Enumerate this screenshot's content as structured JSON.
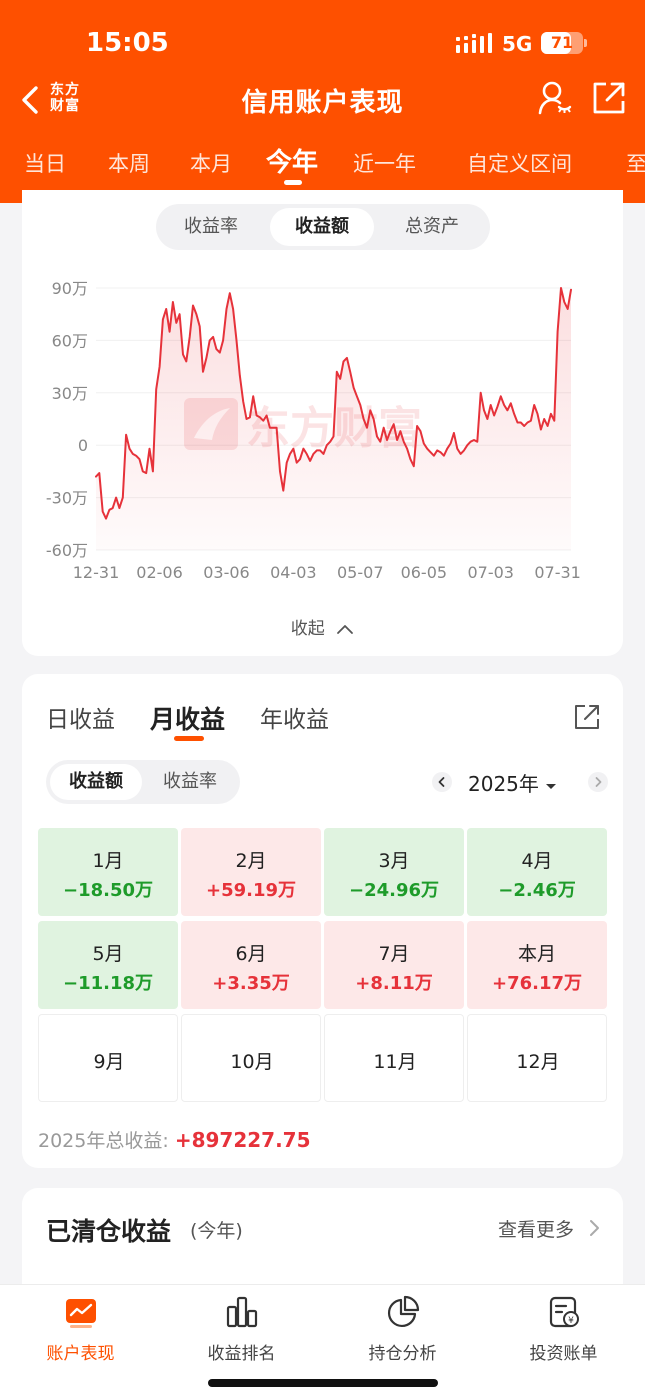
{
  "status": {
    "time": "15:05",
    "network": "5G",
    "battery": "71",
    "battery_level": 0.71
  },
  "nav": {
    "title": "信用账户表现",
    "logo_line1": "东方",
    "logo_line2": "财富"
  },
  "period_tabs": [
    "当日",
    "本周",
    "本月",
    "今年",
    "近一年",
    "自定义区间",
    "至"
  ],
  "period_active": "今年",
  "chart_segments": [
    "收益率",
    "收益额",
    "总资产"
  ],
  "chart_segment_active": "收益额",
  "watermark": "东方财富",
  "collapse_label": "收起",
  "chart_data": {
    "type": "line",
    "title": "",
    "xlabel": "",
    "ylabel": "",
    "x_ticks": [
      "12-31",
      "02-06",
      "03-06",
      "04-03",
      "05-07",
      "06-05",
      "07-03",
      "07-31"
    ],
    "y_ticks": [
      "90万",
      "60万",
      "30万",
      "0",
      "-30万",
      "-60万"
    ],
    "ylim": [
      -600000,
      900000
    ],
    "grid": true,
    "series": [
      {
        "color": "#e6323a",
        "points": [
          [
            "12-31",
            -180000
          ],
          [
            "01-02",
            -160000
          ],
          [
            "01-03",
            -380000
          ],
          [
            "01-06",
            -420000
          ],
          [
            "01-07",
            -370000
          ],
          [
            "01-08",
            -360000
          ],
          [
            "01-10",
            -300000
          ],
          [
            "01-13",
            -360000
          ],
          [
            "01-14",
            -300000
          ],
          [
            "01-15",
            60000
          ],
          [
            "01-16",
            -20000
          ],
          [
            "01-17",
            -50000
          ],
          [
            "01-20",
            -60000
          ],
          [
            "01-21",
            -80000
          ],
          [
            "01-22",
            -150000
          ],
          [
            "01-23",
            -160000
          ],
          [
            "01-24",
            -20000
          ],
          [
            "01-27",
            -150000
          ],
          [
            "02-05",
            320000
          ],
          [
            "02-06",
            450000
          ],
          [
            "02-07",
            720000
          ],
          [
            "02-10",
            780000
          ],
          [
            "02-11",
            650000
          ],
          [
            "02-12",
            820000
          ],
          [
            "02-13",
            700000
          ],
          [
            "02-14",
            750000
          ],
          [
            "02-17",
            520000
          ],
          [
            "02-18",
            480000
          ],
          [
            "02-19",
            620000
          ],
          [
            "02-20",
            800000
          ],
          [
            "02-21",
            750000
          ],
          [
            "02-24",
            680000
          ],
          [
            "02-25",
            420000
          ],
          [
            "02-26",
            500000
          ],
          [
            "02-27",
            600000
          ],
          [
            "02-28",
            620000
          ],
          [
            "03-03",
            550000
          ],
          [
            "03-04",
            530000
          ],
          [
            "03-05",
            600000
          ],
          [
            "03-06",
            780000
          ],
          [
            "03-07",
            870000
          ],
          [
            "03-10",
            780000
          ],
          [
            "03-11",
            600000
          ],
          [
            "03-12",
            400000
          ],
          [
            "03-13",
            250000
          ],
          [
            "03-14",
            150000
          ],
          [
            "03-17",
            160000
          ],
          [
            "03-18",
            280000
          ],
          [
            "03-19",
            170000
          ],
          [
            "03-20",
            160000
          ],
          [
            "03-21",
            140000
          ],
          [
            "03-24",
            170000
          ],
          [
            "03-25",
            100000
          ],
          [
            "03-26",
            100000
          ],
          [
            "03-27",
            100000
          ],
          [
            "03-28",
            -150000
          ],
          [
            "03-31",
            -260000
          ],
          [
            "04-01",
            -100000
          ],
          [
            "04-02",
            -50000
          ],
          [
            "04-03",
            -20000
          ],
          [
            "04-07",
            -100000
          ],
          [
            "04-08",
            -80000
          ],
          [
            "04-09",
            -20000
          ],
          [
            "04-10",
            -50000
          ],
          [
            "04-11",
            -90000
          ],
          [
            "04-14",
            -50000
          ],
          [
            "04-15",
            -30000
          ],
          [
            "04-16",
            -30000
          ],
          [
            "04-17",
            -50000
          ],
          [
            "04-18",
            0
          ],
          [
            "04-21",
            20000
          ],
          [
            "04-22",
            50000
          ],
          [
            "04-23",
            420000
          ],
          [
            "04-24",
            380000
          ],
          [
            "04-25",
            480000
          ],
          [
            "04-28",
            500000
          ],
          [
            "04-29",
            420000
          ],
          [
            "04-30",
            330000
          ],
          [
            "05-06",
            280000
          ],
          [
            "05-07",
            230000
          ],
          [
            "05-08",
            150000
          ],
          [
            "05-09",
            100000
          ],
          [
            "05-12",
            200000
          ],
          [
            "05-13",
            150000
          ],
          [
            "05-14",
            50000
          ],
          [
            "05-15",
            20000
          ],
          [
            "05-16",
            100000
          ],
          [
            "05-19",
            30000
          ],
          [
            "05-20",
            80000
          ],
          [
            "05-21",
            120000
          ],
          [
            "05-22",
            30000
          ],
          [
            "05-23",
            80000
          ],
          [
            "05-26",
            20000
          ],
          [
            "05-27",
            -20000
          ],
          [
            "05-28",
            -80000
          ],
          [
            "05-29",
            -120000
          ],
          [
            "06-03",
            110000
          ],
          [
            "06-04",
            80000
          ],
          [
            "06-05",
            10000
          ],
          [
            "06-06",
            -20000
          ],
          [
            "06-09",
            -40000
          ],
          [
            "06-10",
            -60000
          ],
          [
            "06-11",
            -30000
          ],
          [
            "06-12",
            -40000
          ],
          [
            "06-13",
            -60000
          ],
          [
            "06-16",
            -20000
          ],
          [
            "06-17",
            10000
          ],
          [
            "06-18",
            70000
          ],
          [
            "06-19",
            -20000
          ],
          [
            "06-20",
            -50000
          ],
          [
            "06-23",
            -30000
          ],
          [
            "06-24",
            0
          ],
          [
            "06-25",
            20000
          ],
          [
            "06-26",
            30000
          ],
          [
            "06-27",
            20000
          ],
          [
            "06-30",
            300000
          ],
          [
            "07-01",
            200000
          ],
          [
            "07-02",
            150000
          ],
          [
            "07-03",
            230000
          ],
          [
            "07-04",
            170000
          ],
          [
            "07-07",
            220000
          ],
          [
            "07-08",
            280000
          ],
          [
            "07-09",
            230000
          ],
          [
            "07-10",
            200000
          ],
          [
            "07-11",
            240000
          ],
          [
            "07-14",
            180000
          ],
          [
            "07-15",
            130000
          ],
          [
            "07-16",
            130000
          ],
          [
            "07-17",
            110000
          ],
          [
            "07-18",
            130000
          ],
          [
            "07-21",
            140000
          ],
          [
            "07-22",
            230000
          ],
          [
            "07-23",
            180000
          ],
          [
            "07-24",
            90000
          ],
          [
            "07-25",
            150000
          ],
          [
            "07-28",
            110000
          ],
          [
            "07-29",
            180000
          ],
          [
            "07-30",
            140000
          ],
          [
            "07-31",
            650000
          ],
          [
            "08-01",
            900000
          ],
          [
            "08-04",
            820000
          ],
          [
            "08-05",
            780000
          ],
          [
            "08-06",
            890000
          ]
        ]
      }
    ]
  },
  "monthly": {
    "tabs": [
      "日收益",
      "月收益",
      "年收益"
    ],
    "active_tab": "月收益",
    "segments": [
      "收益额",
      "收益率"
    ],
    "segment_active": "收益额",
    "year": "2025年",
    "cells": [
      {
        "month": "1月",
        "value": "−18.50万",
        "sign": "loss"
      },
      {
        "month": "2月",
        "value": "+59.19万",
        "sign": "gain"
      },
      {
        "month": "3月",
        "value": "−24.96万",
        "sign": "loss"
      },
      {
        "month": "4月",
        "value": "−2.46万",
        "sign": "loss"
      },
      {
        "month": "5月",
        "value": "−11.18万",
        "sign": "loss"
      },
      {
        "month": "6月",
        "value": "+3.35万",
        "sign": "gain"
      },
      {
        "month": "7月",
        "value": "+8.11万",
        "sign": "gain"
      },
      {
        "month": "本月",
        "value": "+76.17万",
        "sign": "gain"
      },
      {
        "month": "9月",
        "value": "",
        "sign": "empty"
      },
      {
        "month": "10月",
        "value": "",
        "sign": "empty"
      },
      {
        "month": "11月",
        "value": "",
        "sign": "empty"
      },
      {
        "month": "12月",
        "value": "",
        "sign": "empty"
      }
    ],
    "total_label": "2025年总收益:",
    "total_value": "+897227.75"
  },
  "cleared": {
    "title": "已清仓收益",
    "subtitle": "(今年)",
    "more": "查看更多"
  },
  "bottom_nav": [
    {
      "label": "账户表现",
      "icon": "chart-line-icon",
      "active": true
    },
    {
      "label": "收益排名",
      "icon": "bar-ranking-icon",
      "active": false
    },
    {
      "label": "持仓分析",
      "icon": "pie-chart-icon",
      "active": false
    },
    {
      "label": "投资账单",
      "icon": "bill-icon",
      "active": false
    }
  ],
  "colors": {
    "brand": "#fe5000",
    "gain": "#e6323a",
    "loss": "#1e9b2a"
  }
}
